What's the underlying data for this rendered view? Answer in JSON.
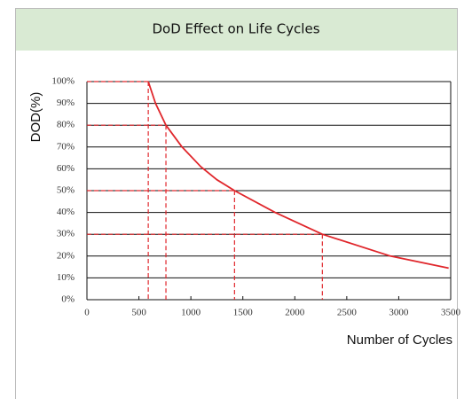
{
  "chart_data": {
    "type": "line",
    "title": "DoD Effect on Life Cycles",
    "y_label": "DOD(%)",
    "x_label": "Number of Cycles",
    "color": "#e0262b",
    "x": [
      590,
      660,
      760,
      915,
      1095,
      1250,
      1420,
      1810,
      2265,
      2920,
      3480
    ],
    "values": [
      100,
      90,
      80,
      70,
      61,
      55,
      50,
      40,
      30,
      20,
      14.5
    ],
    "guides": [
      {
        "x": 590,
        "y": 100
      },
      {
        "x": 760,
        "y": 80
      },
      {
        "x": 1420,
        "y": 50
      },
      {
        "x": 2265,
        "y": 30
      }
    ],
    "xlim": [
      0,
      3500
    ],
    "xticks": [
      0,
      500,
      1000,
      1500,
      2000,
      2500,
      3000,
      3500
    ],
    "ylim": [
      0,
      100
    ],
    "yticks": [
      {
        "value": 0,
        "label": "0%"
      },
      {
        "value": 10,
        "label": "10%"
      },
      {
        "value": 20,
        "label": "20%"
      },
      {
        "value": 30,
        "label": "30%"
      },
      {
        "value": 40,
        "label": "40%"
      },
      {
        "value": 50,
        "label": "50%"
      },
      {
        "value": 60,
        "label": "60%"
      },
      {
        "value": 70,
        "label": "70%"
      },
      {
        "value": 80,
        "label": "80%"
      },
      {
        "value": 90,
        "label": "90%"
      },
      {
        "value": 100,
        "label": "100%"
      }
    ],
    "grid": true
  }
}
